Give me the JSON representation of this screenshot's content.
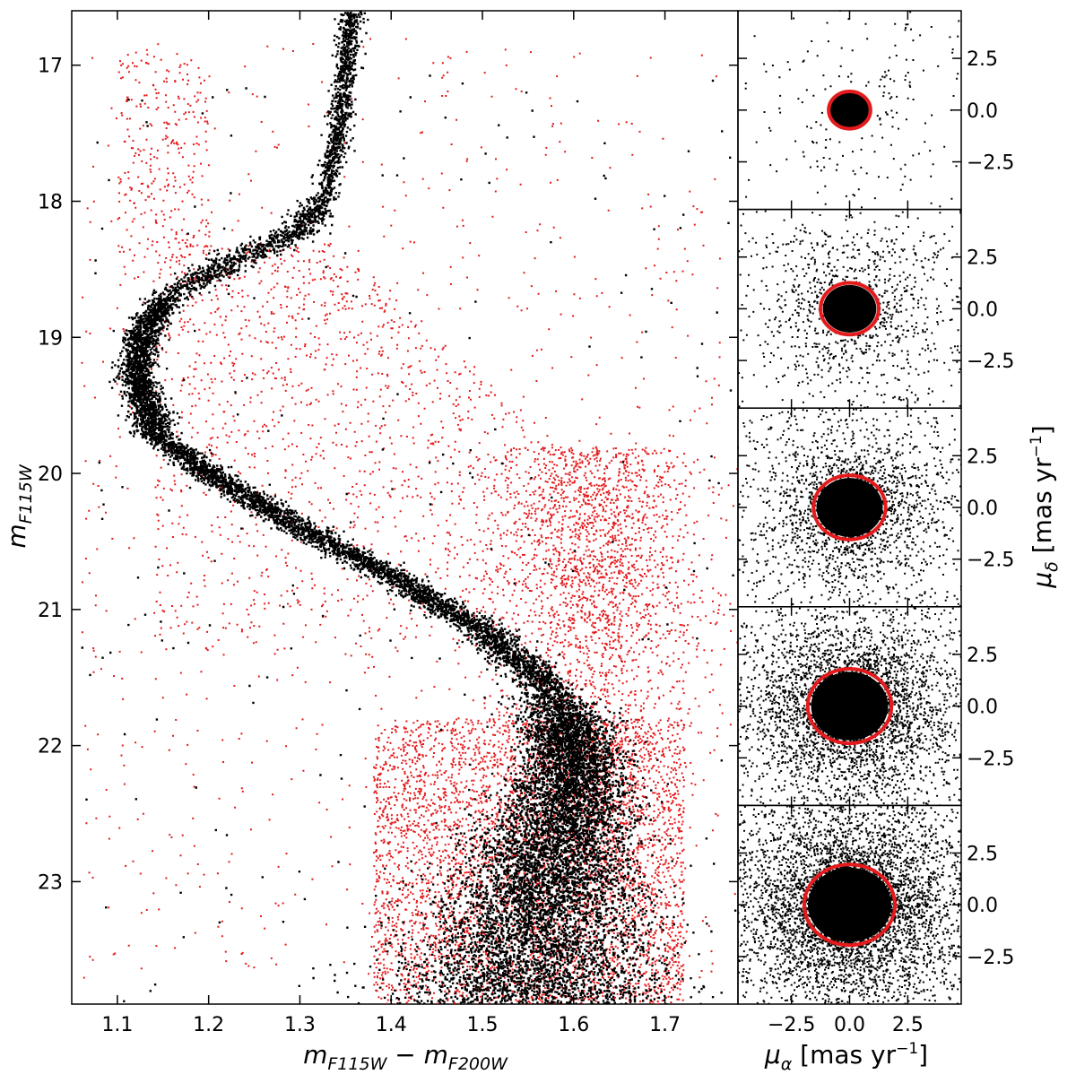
{
  "chart_data": [
    {
      "type": "scatter",
      "panel": "color-magnitude diagram",
      "xlim": [
        1.05,
        1.78
      ],
      "ylim": [
        23.9,
        16.6
      ],
      "y_inverted": true,
      "xticks": [
        1.1,
        1.2,
        1.3,
        1.4,
        1.5,
        1.6,
        1.7
      ],
      "xtick_labels": [
        "1.1",
        "1.2",
        "1.3",
        "1.4",
        "1.5",
        "1.6",
        "1.7"
      ],
      "yticks": [
        17,
        18,
        19,
        20,
        21,
        22,
        23
      ],
      "ytick_labels": [
        "17",
        "18",
        "19",
        "20",
        "21",
        "22",
        "23"
      ],
      "xlabel_parts": {
        "main1": "m",
        "sub1": "F115W",
        "op": " − ",
        "main2": "m",
        "sub2": "F200W"
      },
      "ylabel_parts": {
        "main": "m",
        "sub": "F115W"
      },
      "grid": false,
      "series": [
        {
          "color": "#000000",
          "kind": "cluster members (black points)",
          "ridge_line": [
            {
              "x": 1.355,
              "y": 16.6
            },
            {
              "x": 1.35,
              "y": 17.0
            },
            {
              "x": 1.34,
              "y": 17.5
            },
            {
              "x": 1.325,
              "y": 18.0
            },
            {
              "x": 1.29,
              "y": 18.25
            },
            {
              "x": 1.22,
              "y": 18.45
            },
            {
              "x": 1.15,
              "y": 18.7
            },
            {
              "x": 1.125,
              "y": 19.0
            },
            {
              "x": 1.12,
              "y": 19.3
            },
            {
              "x": 1.14,
              "y": 19.7
            },
            {
              "x": 1.2,
              "y": 20.0
            },
            {
              "x": 1.3,
              "y": 20.4
            },
            {
              "x": 1.4,
              "y": 20.75
            },
            {
              "x": 1.5,
              "y": 21.15
            },
            {
              "x": 1.56,
              "y": 21.5
            },
            {
              "x": 1.59,
              "y": 21.8
            },
            {
              "x": 1.6,
              "y": 22.1
            },
            {
              "x": 1.59,
              "y": 22.5
            },
            {
              "x": 1.57,
              "y": 22.9
            },
            {
              "x": 1.56,
              "y": 23.3
            },
            {
              "x": 1.55,
              "y": 23.9
            }
          ]
        },
        {
          "color": "#e41a1c",
          "kind": "field stars (red points)"
        }
      ]
    },
    {
      "type": "scatter",
      "panel": "vector-point diagrams (5 stacked)",
      "xlim": [
        -4.8,
        4.8
      ],
      "ylim": [
        -4.8,
        4.8
      ],
      "xticks": [
        -2.5,
        0.0,
        2.5
      ],
      "xtick_labels": [
        "−2.5",
        "0.0",
        "2.5"
      ],
      "yticks": [
        2.5,
        0.0,
        -2.5
      ],
      "ytick_labels": [
        "2.5",
        "0.0",
        "−2.5"
      ],
      "xlabel_parts": {
        "main": "μ",
        "sub": "α",
        "rest": " [mas yr",
        "sup": "−1",
        "end": "]"
      },
      "ylabel_parts": {
        "main": "μ",
        "sub": "δ",
        "rest": " [mas yr",
        "sup": "−1",
        "end": "]"
      },
      "circle_color": "#e41a1c",
      "panels": [
        {
          "magnitude_bin": [
            16.6,
            18.0
          ],
          "circle_radius": 0.9,
          "n_field": 150,
          "n_core": 120
        },
        {
          "magnitude_bin": [
            18.0,
            19.5
          ],
          "circle_radius": 1.25,
          "n_field": 700,
          "n_core": 450
        },
        {
          "magnitude_bin": [
            19.5,
            21.0
          ],
          "circle_radius": 1.55,
          "n_field": 1300,
          "n_core": 800
        },
        {
          "magnitude_bin": [
            21.0,
            22.5
          ],
          "circle_radius": 1.8,
          "n_field": 2400,
          "n_core": 1500
        },
        {
          "magnitude_bin": [
            22.5,
            23.9
          ],
          "circle_radius": 1.95,
          "n_field": 3400,
          "n_core": 2200
        }
      ]
    }
  ]
}
